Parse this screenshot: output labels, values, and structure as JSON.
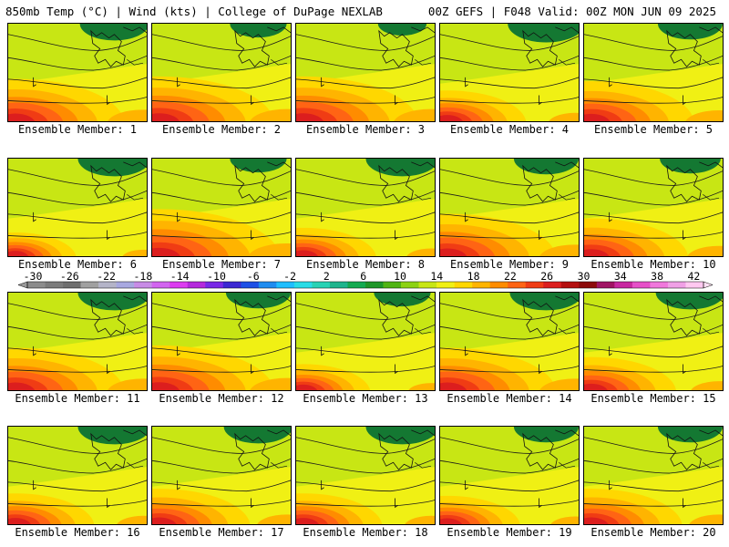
{
  "header": {
    "left": "850mb Temp (°C) | Wind (kts) | College of DuPage NEXLAB",
    "right": "00Z GEFS | F048 Valid: 00Z MON JUN 09 2025"
  },
  "panels": [
    {
      "label": "Ensemble Member: 1",
      "hot": 0.85,
      "cool": 0.85
    },
    {
      "label": "Ensemble Member: 2",
      "hot": 0.9,
      "cool": 0.7
    },
    {
      "label": "Ensemble Member: 3",
      "hot": 0.9,
      "cool": 0.6
    },
    {
      "label": "Ensemble Member: 4",
      "hot": 0.6,
      "cool": 0.95
    },
    {
      "label": "Ensemble Member: 5",
      "hot": 0.8,
      "cool": 0.8
    },
    {
      "label": "Ensemble Member: 6",
      "hot": 0.45,
      "cool": 0.9
    },
    {
      "label": "Ensemble Member: 7",
      "hot": 0.95,
      "cool": 0.7
    },
    {
      "label": "Ensemble Member: 8",
      "hot": 0.55,
      "cool": 0.9
    },
    {
      "label": "Ensemble Member: 9",
      "hot": 0.85,
      "cool": 0.8
    },
    {
      "label": "Ensemble Member: 10",
      "hot": 0.75,
      "cool": 0.75
    },
    {
      "label": "Ensemble Member: 11",
      "hot": 0.85,
      "cool": 0.9
    },
    {
      "label": "Ensemble Member: 12",
      "hot": 0.9,
      "cool": 0.8
    },
    {
      "label": "Ensemble Member: 13",
      "hot": 0.5,
      "cool": 0.7
    },
    {
      "label": "Ensemble Member: 14",
      "hot": 0.85,
      "cool": 0.9
    },
    {
      "label": "Ensemble Member: 15",
      "hot": 0.65,
      "cool": 0.85
    },
    {
      "label": "Ensemble Member: 16",
      "hot": 0.6,
      "cool": 0.9
    },
    {
      "label": "Ensemble Member: 17",
      "hot": 0.7,
      "cool": 0.85
    },
    {
      "label": "Ensemble Member: 18",
      "hot": 0.6,
      "cool": 0.9
    },
    {
      "label": "Ensemble Member: 19",
      "hot": 0.55,
      "cool": 0.8
    },
    {
      "label": "Ensemble Member: 20",
      "hot": 0.7,
      "cool": 0.8
    }
  ],
  "colorbar": {
    "labels": [
      "-30",
      "-26",
      "-22",
      "-18",
      "-14",
      "-10",
      "-6",
      "-2",
      "2",
      "6",
      "10",
      "14",
      "18",
      "22",
      "26",
      "30",
      "34",
      "38",
      "42"
    ],
    "colors": [
      "#8c8c8c",
      "#7b7b7b",
      "#6e6e6e",
      "#a0a0a0",
      "#b4b4c8",
      "#a8a8e0",
      "#c88ce6",
      "#d264f0",
      "#dc3cf0",
      "#b428dc",
      "#7828e6",
      "#3c28d2",
      "#1e50e6",
      "#1e8cf0",
      "#1ebeff",
      "#28dce6",
      "#28d2b4",
      "#1eb48c",
      "#14aa50",
      "#1e9628",
      "#50b414",
      "#8cd214",
      "#c8e614",
      "#f0f014",
      "#ffd700",
      "#ffb400",
      "#ff8c00",
      "#ff6414",
      "#f03c14",
      "#dc1e1e",
      "#b40f0f",
      "#8c0a0a",
      "#a01464",
      "#c828a0",
      "#e650c8",
      "#f078dc",
      "#f0a0e6",
      "#ffc8f0"
    ]
  }
}
